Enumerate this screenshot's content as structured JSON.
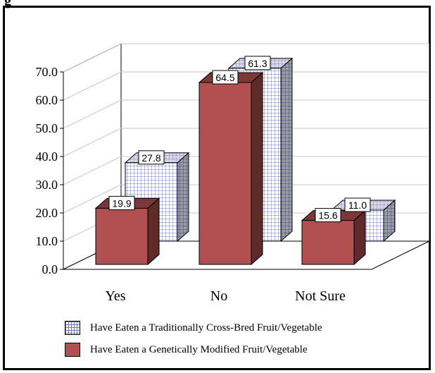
{
  "page": {
    "title_fragment": "g"
  },
  "chart_data": {
    "type": "bar",
    "categories": [
      "Yes",
      "No",
      "Not Sure"
    ],
    "series": [
      {
        "name": "Have Eaten a Traditionally Cross-Bred Fruit/Vegetable",
        "values": [
          27.8,
          61.3,
          11.0
        ],
        "color": "#6f74d6",
        "pattern": "grid"
      },
      {
        "name": "Have Eaten a Genetically Modified Fruit/Vegetable",
        "values": [
          19.9,
          64.5,
          15.6
        ],
        "color": "#b05050",
        "pattern": "solid"
      }
    ],
    "value_labels": [
      "27.8",
      "61.3",
      "11.0",
      "19.9",
      "64.5",
      "15.6"
    ],
    "y_ticks": [
      "0.0",
      "10.0",
      "20.0",
      "30.0",
      "40.0",
      "50.0",
      "60.0",
      "70.0"
    ],
    "ylim": [
      0,
      70
    ],
    "grid": true,
    "style": "3d",
    "legend_position": "bottom"
  }
}
